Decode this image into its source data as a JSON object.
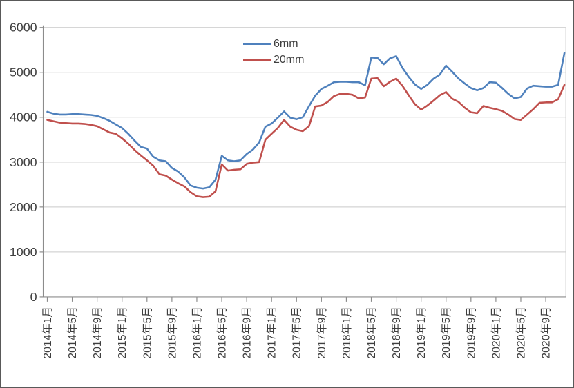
{
  "chart_data": {
    "type": "line",
    "title": "",
    "xlabel": "",
    "ylabel": "",
    "ylim": [
      0,
      6000
    ],
    "y_ticks": [
      0,
      1000,
      2000,
      3000,
      4000,
      5000,
      6000
    ],
    "grid": true,
    "legend_position": "top-inside-center",
    "x_tick_every": 4,
    "x_tick_labels": [
      "2014年1月",
      "2014年5月",
      "2014年9月",
      "2015年1月",
      "2015年5月",
      "2015年9月",
      "2016年1月",
      "2016年5月",
      "2016年9月",
      "2017年1月",
      "2017年5月",
      "2017年9月",
      "2018年1月",
      "2018年5月",
      "2018年9月",
      "2019年1月",
      "2019年5月",
      "2019年9月",
      "2020年1月",
      "2020年5月",
      "2020年9月"
    ],
    "series": [
      {
        "name": "6mm",
        "color": "#4F81BD",
        "values": [
          4120,
          4080,
          4060,
          4060,
          4070,
          4070,
          4060,
          4050,
          4030,
          3980,
          3920,
          3840,
          3760,
          3630,
          3480,
          3340,
          3300,
          3120,
          3040,
          3020,
          2870,
          2790,
          2660,
          2480,
          2430,
          2410,
          2440,
          2610,
          3140,
          3040,
          3020,
          3040,
          3180,
          3280,
          3440,
          3790,
          3860,
          3990,
          4130,
          3990,
          3955,
          4000,
          4245,
          4480,
          4630,
          4700,
          4780,
          4790,
          4790,
          4780,
          4780,
          4710,
          5330,
          5320,
          5180,
          5310,
          5360,
          5100,
          4900,
          4730,
          4630,
          4720,
          4860,
          4950,
          5150,
          5010,
          4860,
          4750,
          4650,
          4600,
          4650,
          4780,
          4770,
          4650,
          4520,
          4420,
          4450,
          4640,
          4700,
          4690,
          4680,
          4680,
          4720,
          5430
        ]
      },
      {
        "name": "20mm",
        "color": "#C0504D",
        "values": [
          3940,
          3910,
          3880,
          3870,
          3860,
          3860,
          3850,
          3830,
          3800,
          3730,
          3660,
          3630,
          3530,
          3410,
          3270,
          3150,
          3040,
          2920,
          2730,
          2700,
          2610,
          2530,
          2460,
          2330,
          2240,
          2220,
          2230,
          2350,
          2950,
          2810,
          2830,
          2840,
          2960,
          2990,
          3000,
          3500,
          3630,
          3760,
          3940,
          3790,
          3720,
          3690,
          3800,
          4240,
          4260,
          4340,
          4470,
          4520,
          4520,
          4500,
          4420,
          4440,
          4860,
          4870,
          4690,
          4790,
          4860,
          4700,
          4490,
          4290,
          4170,
          4260,
          4370,
          4490,
          4560,
          4410,
          4340,
          4210,
          4110,
          4090,
          4250,
          4210,
          4180,
          4140,
          4060,
          3960,
          3940,
          4060,
          4180,
          4320,
          4330,
          4330,
          4400,
          4720
        ]
      }
    ],
    "colors": {
      "gridline": "#C9C9C9",
      "axis": "#8C8C8C",
      "text": "#3F3F3F"
    }
  }
}
